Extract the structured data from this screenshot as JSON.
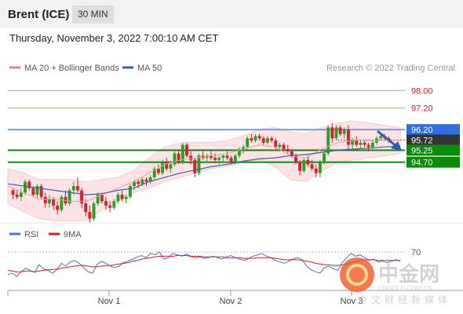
{
  "header": {
    "title": "Brent (ICE)",
    "interval": "30 MIN",
    "timestamp": "Thursday, November 3, 2022 7:00:10 AM CET"
  },
  "chart_data": [
    {
      "type": "candlestick",
      "legend": [
        {
          "name": "MA 20 + Bollinger Bands",
          "color": "#f08080"
        },
        {
          "name": "MA 50",
          "color": "#3b5ea8"
        }
      ],
      "credit": "Research © 2022 Trading Central",
      "levels": [
        {
          "value": 98.0,
          "label": "98.00",
          "kind": "resistance",
          "color": "#f0a090"
        },
        {
          "value": 97.2,
          "label": "97.20",
          "kind": "resistance",
          "color": "#f0a090"
        },
        {
          "value": 96.2,
          "label": "96.20",
          "kind": "pivot",
          "color": "#2f6fe0"
        },
        {
          "value": 95.72,
          "label": "95.72",
          "kind": "last",
          "color": "#333333"
        },
        {
          "value": 95.25,
          "label": "95.25",
          "kind": "support",
          "color": "#0b8a0b"
        },
        {
          "value": 94.7,
          "label": "94.70",
          "kind": "support",
          "color": "#0b8a0b"
        }
      ],
      "ylim": [
        91.9,
        98.7
      ],
      "xticks": [
        "Nov 1",
        "Nov 2",
        "Nov 3"
      ],
      "candles": [
        [
          93.4,
          93.5,
          93.0,
          93.2
        ],
        [
          93.2,
          93.4,
          93.0,
          93.1
        ],
        [
          93.1,
          93.5,
          92.9,
          93.3
        ],
        [
          93.3,
          93.9,
          93.2,
          93.8
        ],
        [
          93.8,
          93.9,
          93.4,
          93.5
        ],
        [
          93.5,
          93.6,
          93.1,
          93.2
        ],
        [
          93.2,
          93.7,
          93.0,
          93.6
        ],
        [
          93.6,
          93.7,
          93.0,
          93.1
        ],
        [
          93.1,
          93.3,
          92.6,
          92.8
        ],
        [
          92.8,
          93.2,
          92.6,
          93.0
        ],
        [
          93.0,
          93.1,
          92.5,
          92.7
        ],
        [
          92.7,
          92.9,
          92.3,
          92.5
        ],
        [
          92.5,
          93.2,
          92.4,
          93.1
        ],
        [
          93.1,
          93.4,
          92.7,
          92.8
        ],
        [
          92.8,
          93.5,
          92.7,
          93.4
        ],
        [
          93.4,
          93.8,
          93.2,
          93.6
        ],
        [
          93.6,
          94.0,
          93.3,
          93.4
        ],
        [
          93.4,
          93.5,
          92.6,
          92.8
        ],
        [
          92.8,
          93.0,
          92.2,
          92.4
        ],
        [
          92.4,
          92.7,
          91.9,
          92.1
        ],
        [
          92.1,
          92.9,
          92.0,
          92.8
        ],
        [
          92.8,
          93.3,
          92.7,
          93.2
        ],
        [
          93.2,
          93.3,
          92.8,
          92.9
        ],
        [
          92.9,
          93.1,
          92.5,
          92.7
        ],
        [
          92.7,
          92.9,
          92.4,
          92.6
        ],
        [
          92.6,
          93.0,
          92.5,
          92.9
        ],
        [
          92.9,
          93.3,
          92.8,
          93.2
        ],
        [
          93.2,
          93.4,
          92.9,
          93.0
        ],
        [
          93.0,
          93.2,
          92.8,
          93.1
        ],
        [
          93.1,
          93.7,
          93.0,
          93.6
        ],
        [
          93.6,
          93.9,
          93.4,
          93.8
        ],
        [
          93.8,
          93.9,
          93.5,
          93.7
        ],
        [
          93.7,
          94.0,
          93.6,
          93.9
        ],
        [
          93.9,
          94.0,
          93.6,
          93.8
        ],
        [
          93.8,
          94.1,
          93.7,
          94.0
        ],
        [
          94.0,
          94.5,
          93.9,
          94.4
        ],
        [
          94.4,
          94.6,
          94.1,
          94.2
        ],
        [
          94.2,
          94.8,
          94.1,
          94.7
        ],
        [
          94.7,
          94.9,
          94.3,
          94.4
        ],
        [
          94.4,
          94.7,
          94.2,
          94.6
        ],
        [
          94.6,
          95.2,
          94.5,
          95.1
        ],
        [
          95.1,
          95.3,
          94.6,
          94.7
        ],
        [
          94.7,
          95.6,
          94.6,
          95.5
        ],
        [
          95.5,
          95.6,
          94.9,
          95.0
        ],
        [
          95.0,
          95.2,
          94.6,
          94.8
        ],
        [
          94.8,
          94.9,
          94.0,
          94.2
        ],
        [
          94.2,
          95.1,
          94.1,
          95.0
        ],
        [
          95.0,
          95.2,
          94.8,
          94.9
        ],
        [
          94.9,
          95.1,
          94.7,
          95.0
        ],
        [
          95.0,
          95.2,
          94.8,
          94.9
        ],
        [
          94.9,
          95.1,
          94.7,
          94.8
        ],
        [
          94.8,
          95.0,
          94.6,
          94.9
        ],
        [
          94.9,
          95.1,
          94.7,
          95.0
        ],
        [
          95.0,
          95.2,
          94.8,
          94.9
        ],
        [
          94.9,
          95.0,
          94.6,
          94.7
        ],
        [
          94.7,
          95.1,
          94.6,
          95.0
        ],
        [
          95.0,
          95.4,
          94.9,
          95.3
        ],
        [
          95.3,
          95.5,
          95.1,
          95.4
        ],
        [
          95.4,
          95.9,
          95.3,
          95.8
        ],
        [
          95.8,
          96.0,
          95.6,
          95.7
        ],
        [
          95.7,
          96.0,
          95.6,
          95.9
        ],
        [
          95.9,
          96.0,
          95.7,
          95.8
        ],
        [
          95.8,
          95.9,
          95.5,
          95.6
        ],
        [
          95.6,
          95.9,
          95.5,
          95.8
        ],
        [
          95.8,
          95.9,
          95.6,
          95.7
        ],
        [
          95.7,
          95.8,
          95.3,
          95.4
        ],
        [
          95.4,
          95.6,
          95.2,
          95.5
        ],
        [
          95.5,
          95.6,
          95.2,
          95.3
        ],
        [
          95.3,
          95.5,
          95.1,
          95.2
        ],
        [
          95.2,
          95.3,
          94.9,
          95.0
        ],
        [
          95.0,
          95.1,
          94.6,
          94.7
        ],
        [
          94.7,
          94.8,
          94.1,
          94.3
        ],
        [
          94.3,
          94.9,
          94.2,
          94.8
        ],
        [
          94.8,
          95.0,
          94.5,
          94.6
        ],
        [
          94.6,
          94.8,
          94.3,
          94.4
        ],
        [
          94.4,
          94.6,
          94.0,
          94.2
        ],
        [
          94.2,
          94.8,
          94.0,
          94.7
        ],
        [
          94.7,
          95.2,
          94.6,
          95.1
        ],
        [
          95.1,
          96.4,
          95.0,
          96.3
        ],
        [
          96.3,
          96.5,
          95.6,
          95.8
        ],
        [
          95.8,
          96.4,
          95.7,
          96.3
        ],
        [
          96.3,
          96.4,
          95.9,
          96.0
        ],
        [
          96.0,
          96.3,
          95.8,
          96.2
        ],
        [
          96.2,
          96.4,
          95.3,
          95.5
        ],
        [
          95.5,
          95.8,
          95.2,
          95.7
        ],
        [
          95.7,
          95.9,
          95.4,
          95.5
        ],
        [
          95.5,
          95.7,
          95.3,
          95.6
        ],
        [
          95.6,
          95.7,
          95.4,
          95.5
        ],
        [
          95.5,
          95.6,
          95.2,
          95.4
        ],
        [
          95.4,
          95.7,
          95.3,
          95.6
        ],
        [
          95.6,
          95.9,
          95.5,
          95.8
        ],
        [
          95.8,
          96.0,
          95.7,
          95.9
        ],
        [
          95.9,
          96.0,
          95.7,
          95.8
        ],
        [
          95.8,
          95.9,
          95.6,
          95.7
        ]
      ],
      "ma50": [
        93.7,
        93.6,
        93.5,
        93.4,
        93.3,
        93.2,
        93.25,
        93.4,
        93.5,
        93.8,
        94.0,
        94.2,
        94.35,
        94.5,
        94.6,
        94.75,
        94.85,
        94.9,
        95.0,
        95.05,
        95.15,
        95.25,
        95.3,
        95.35,
        95.4,
        95.45
      ],
      "bollinger_mid": [
        93.6,
        93.3,
        93.0,
        93.0,
        92.9,
        92.9,
        93.2,
        93.5,
        93.8,
        94.2,
        94.6,
        94.8,
        94.9,
        95.0,
        95.1,
        95.3,
        95.5,
        95.4,
        95.0,
        94.9,
        95.3,
        95.6,
        95.7,
        95.7,
        95.7,
        95.7
      ],
      "bollinger_upper": [
        94.4,
        94.2,
        93.9,
        93.9,
        93.9,
        93.8,
        93.9,
        94.0,
        94.3,
        94.9,
        95.4,
        95.6,
        95.6,
        95.6,
        95.7,
        95.9,
        96.2,
        96.3,
        96.1,
        96.0,
        96.3,
        96.5,
        96.6,
        96.5,
        96.4,
        96.3
      ],
      "bollinger_lower": [
        92.8,
        92.4,
        92.1,
        92.0,
        92.0,
        92.0,
        92.5,
        92.9,
        93.3,
        93.5,
        93.8,
        94.0,
        94.2,
        94.4,
        94.5,
        94.7,
        94.8,
        94.5,
        93.9,
        93.8,
        94.3,
        94.7,
        94.8,
        94.9,
        95.0,
        95.1
      ]
    },
    {
      "type": "line",
      "legend": [
        {
          "name": "RSI",
          "color": "#4a72d8"
        },
        {
          "name": "9MA",
          "color": "#d81f2a"
        }
      ],
      "reference_level": {
        "value": 70,
        "label": "70"
      },
      "ylim": [
        20,
        80
      ],
      "series": [
        {
          "name": "RSI",
          "values": [
            38,
            40,
            35,
            42,
            47,
            44,
            41,
            52,
            46,
            44,
            40,
            45,
            54,
            50,
            56,
            58,
            54,
            48,
            42,
            40,
            52,
            57,
            54,
            50,
            48,
            50,
            55,
            57,
            60,
            63,
            65,
            62,
            68,
            66,
            70,
            60,
            62,
            68,
            66,
            64,
            67,
            64,
            62,
            63,
            61,
            62,
            64,
            62,
            60,
            63,
            65,
            62,
            60,
            58,
            61,
            64,
            66,
            68,
            64,
            62,
            58,
            56,
            54,
            57,
            60,
            62,
            59,
            50,
            45,
            42,
            40,
            48,
            50,
            46,
            44,
            55,
            62,
            68,
            64,
            66,
            62,
            58,
            60,
            56,
            57,
            55,
            57,
            59,
            57
          ]
        },
        {
          "name": "9MA",
          "values": [
            44,
            43,
            42,
            42,
            43,
            43,
            42,
            43,
            44,
            45,
            45,
            46,
            47,
            48,
            49,
            50,
            51,
            51,
            50,
            49,
            49,
            50,
            51,
            51,
            52,
            53,
            54,
            55,
            57,
            58,
            60,
            61,
            62,
            63,
            64,
            64,
            64,
            64,
            65,
            65,
            65,
            64,
            64,
            64,
            63,
            63,
            63,
            63,
            63,
            62,
            62,
            62,
            62,
            61,
            61,
            61,
            62,
            62,
            62,
            62,
            61,
            60,
            59,
            59,
            59,
            59,
            58,
            57,
            56,
            54,
            53,
            52,
            52,
            51,
            51,
            52,
            53,
            55,
            56,
            58,
            59,
            59,
            59,
            58,
            58,
            58,
            58,
            58,
            58
          ]
        }
      ]
    }
  ],
  "watermark": {
    "logo_text": "中金网",
    "domain": "CNGOLD.COM.CN",
    "tagline": "中文财经新媒体"
  }
}
